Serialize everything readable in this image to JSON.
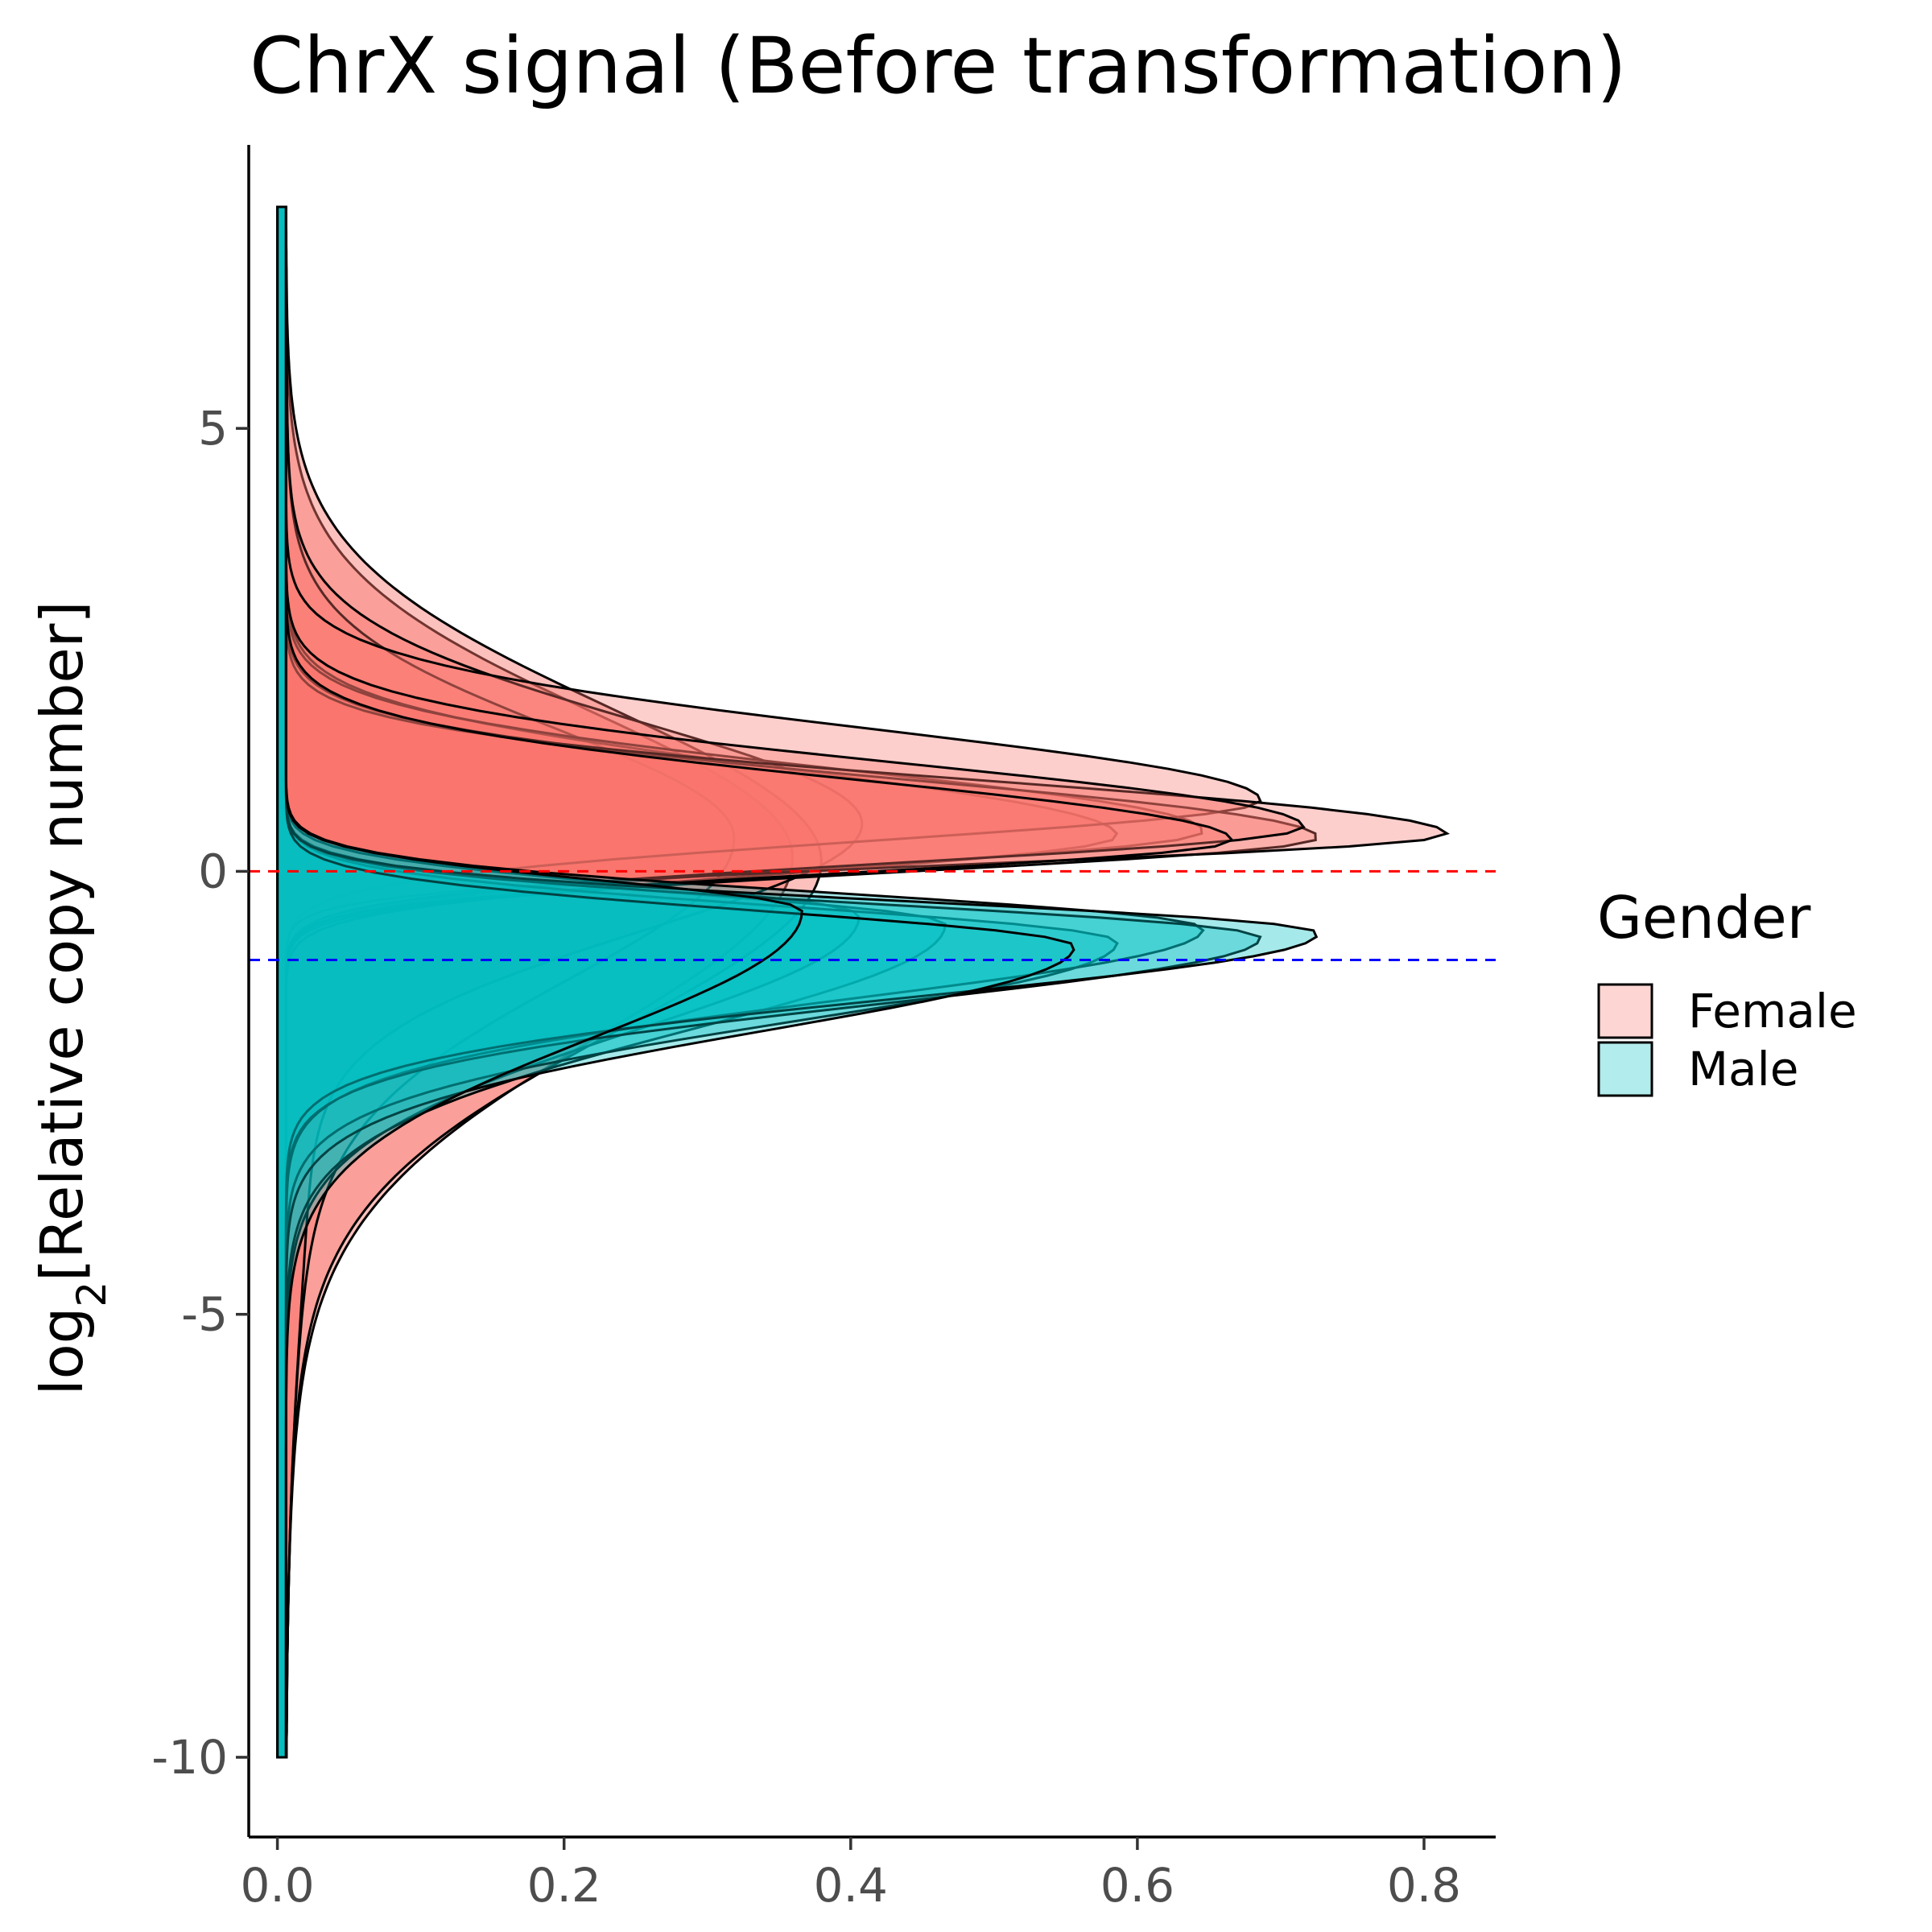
{
  "chart_data": {
    "type": "area",
    "orientation": "horizontal-density",
    "title": "ChrX signal (Before transformation)",
    "xlabel": "",
    "ylabel_prefix": "log",
    "ylabel_subscript": "2",
    "ylabel_suffix": "[Relative copy number]",
    "xlim": [
      -0.02,
      0.85
    ],
    "ylim": [
      -10.9,
      8.2
    ],
    "x_ticks": [
      0.0,
      0.2,
      0.4,
      0.6,
      0.8
    ],
    "x_tick_labels": [
      "0.0",
      "0.2",
      "0.4",
      "0.6",
      "0.8"
    ],
    "y_ticks": [
      5,
      0,
      -5,
      -10
    ],
    "y_tick_labels": [
      "5",
      "0",
      "-5",
      "-10"
    ],
    "grid": false,
    "reference_lines": [
      {
        "y": 0,
        "color": "#ff0000",
        "style": "dashed"
      },
      {
        "y": -1,
        "color": "#0000ff",
        "style": "dashed"
      }
    ],
    "legend": {
      "title": "Gender",
      "placement": "right",
      "entries": [
        {
          "label": "Female",
          "color": "#f8766d"
        },
        {
          "label": "Male",
          "color": "#00bfc4"
        }
      ]
    },
    "series": [
      {
        "group": "Female",
        "shape": "broad",
        "center": 0.2,
        "peak": 0.34,
        "sdLow": 2.0,
        "sdHigh": 1.6
      },
      {
        "group": "Female",
        "shape": "broad",
        "center": 0.15,
        "peak": 0.36,
        "sdLow": 1.9,
        "sdHigh": 1.7
      },
      {
        "group": "Female",
        "shape": "tail",
        "center": 0.4,
        "peak": 0.3,
        "sdLow": 1.6,
        "sdHigh": 1.2
      },
      {
        "group": "Female",
        "shape": "tail",
        "center": 0.55,
        "peak": 0.39,
        "sdLow": 1.2,
        "sdHigh": 1.15
      },
      {
        "group": "Female",
        "shape": "normal",
        "center": 0.4,
        "peak": 0.58,
        "sdLow": 0.42,
        "sdHigh": 0.75
      },
      {
        "group": "Female",
        "shape": "normal",
        "center": 0.45,
        "peak": 0.64,
        "sdLow": 0.4,
        "sdHigh": 0.7
      },
      {
        "group": "Female",
        "shape": "normal",
        "center": 0.8,
        "peak": 0.68,
        "sdLow": 0.45,
        "sdHigh": 0.8
      },
      {
        "group": "Female",
        "shape": "normal",
        "center": 0.38,
        "peak": 0.72,
        "sdLow": 0.38,
        "sdHigh": 0.65
      },
      {
        "group": "Female",
        "shape": "normal",
        "center": 0.42,
        "peak": 0.81,
        "sdLow": 0.33,
        "sdHigh": 0.6
      },
      {
        "group": "Female",
        "shape": "normal",
        "center": 0.5,
        "peak": 0.71,
        "sdLow": 0.4,
        "sdHigh": 0.72
      },
      {
        "group": "Female",
        "shape": "normal",
        "center": 0.35,
        "peak": 0.66,
        "sdLow": 0.36,
        "sdHigh": 0.68
      },
      {
        "group": "Male",
        "shape": "normal",
        "center": -0.5,
        "peak": 0.4,
        "sdLow": 1.3,
        "sdHigh": 0.35
      },
      {
        "group": "Male",
        "shape": "normal",
        "center": -0.6,
        "peak": 0.46,
        "sdLow": 1.2,
        "sdHigh": 0.35
      },
      {
        "group": "Male",
        "shape": "normal",
        "center": -0.8,
        "peak": 0.58,
        "sdLow": 0.9,
        "sdHigh": 0.4
      },
      {
        "group": "Male",
        "shape": "normal",
        "center": -0.65,
        "peak": 0.64,
        "sdLow": 0.8,
        "sdHigh": 0.4
      },
      {
        "group": "Male",
        "shape": "normal",
        "center": -0.75,
        "peak": 0.68,
        "sdLow": 0.75,
        "sdHigh": 0.38
      },
      {
        "group": "Male",
        "shape": "normal",
        "center": -0.7,
        "peak": 0.72,
        "sdLow": 0.72,
        "sdHigh": 0.36
      },
      {
        "group": "Male",
        "shape": "normal",
        "center": -0.85,
        "peak": 0.55,
        "sdLow": 0.95,
        "sdHigh": 0.4
      },
      {
        "group": "Male",
        "shape": "normal",
        "center": -0.45,
        "peak": 0.36,
        "sdLow": 1.4,
        "sdHigh": 0.35
      }
    ]
  }
}
